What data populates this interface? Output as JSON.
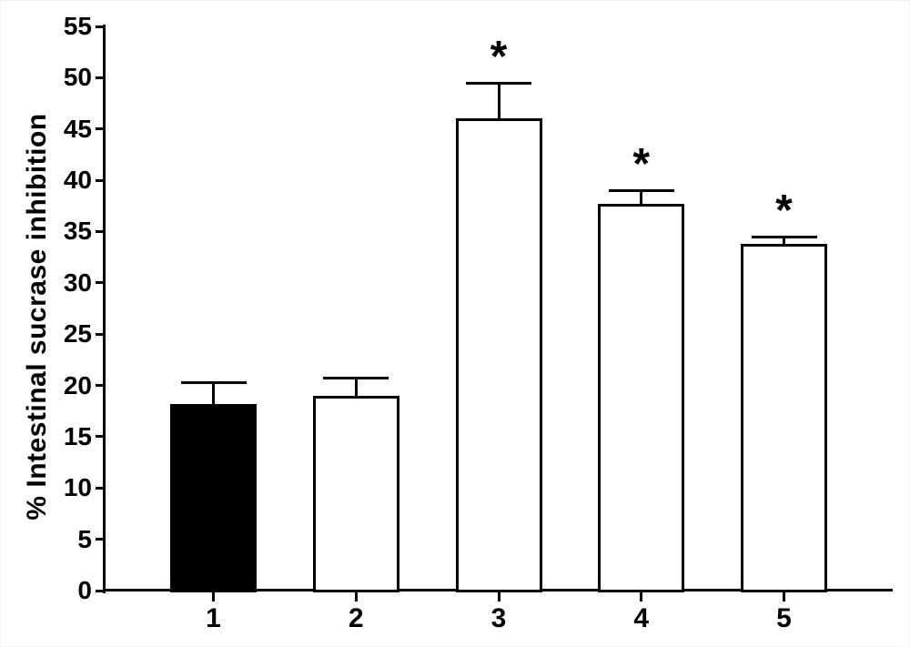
{
  "figure": {
    "background_color": "#ffffff",
    "axis_color": "#000000",
    "text_color": "#000000"
  },
  "chart_data": {
    "type": "bar",
    "title": "",
    "ylabel": "% Intestinal sucrase inhibition",
    "categories": [
      "1",
      "2",
      "3",
      "4",
      "5"
    ],
    "values": [
      18.2,
      19.0,
      46.0,
      37.7,
      33.8
    ],
    "errors_upper": [
      2.1,
      1.7,
      3.5,
      1.3,
      0.7
    ],
    "significant": [
      false,
      false,
      true,
      true,
      true
    ],
    "significance_marker": "*",
    "bar_fill_colors": [
      "#000000",
      "#ffffff",
      "#ffffff",
      "#ffffff",
      "#ffffff"
    ],
    "bar_edge_color": "#000000",
    "ylim": [
      0,
      55
    ],
    "ytick_step": 5,
    "yticks": [
      0,
      5,
      10,
      15,
      20,
      25,
      30,
      35,
      40,
      45,
      50,
      55
    ],
    "grid": false,
    "legend": "none"
  }
}
